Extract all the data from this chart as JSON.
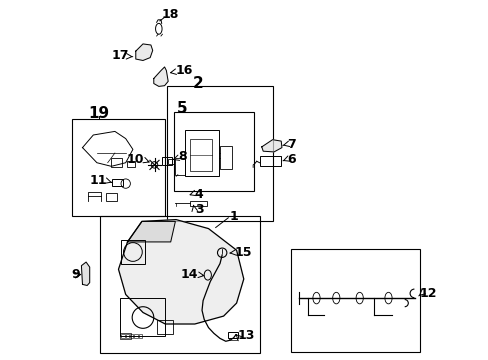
{
  "bg_color": "#ffffff",
  "line_color": "#000000",
  "fig_width": 4.89,
  "fig_height": 3.6,
  "dpi": 100,
  "font_size_large": 11,
  "font_size_small": 9,
  "font_size_med": 10
}
